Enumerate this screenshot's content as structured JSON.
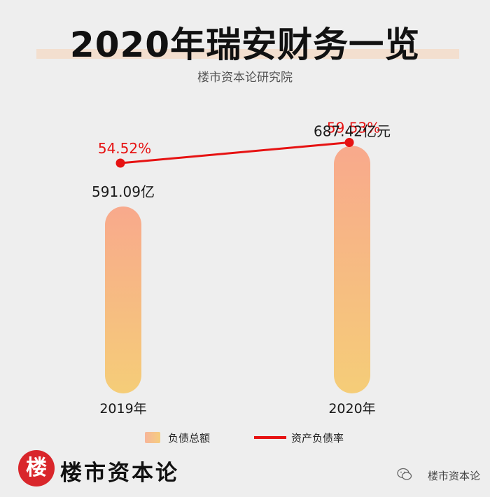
{
  "header": {
    "title": "2020年瑞安财务一览",
    "subtitle": "楼市资本论研究院"
  },
  "chart_data": {
    "type": "bar",
    "categories": [
      "2019年",
      "2020年"
    ],
    "series": [
      {
        "name": "负债总额",
        "type": "bar",
        "values": [
          591.09,
          687.42
        ],
        "labels": [
          "591.09亿",
          "687.42亿元"
        ]
      },
      {
        "name": "资产负债率",
        "type": "line",
        "values": [
          54.52,
          59.53
        ],
        "labels": [
          "54.52%",
          "59.53%"
        ]
      }
    ],
    "colors": {
      "bar_top": "#f8a98c",
      "bar_bottom": "#f5cd78",
      "line": "#e61212"
    },
    "legend": "bottom"
  },
  "footer": {
    "logo_char": "楼",
    "logo_text": "楼市资本论",
    "watermark": "楼市资本论"
  }
}
